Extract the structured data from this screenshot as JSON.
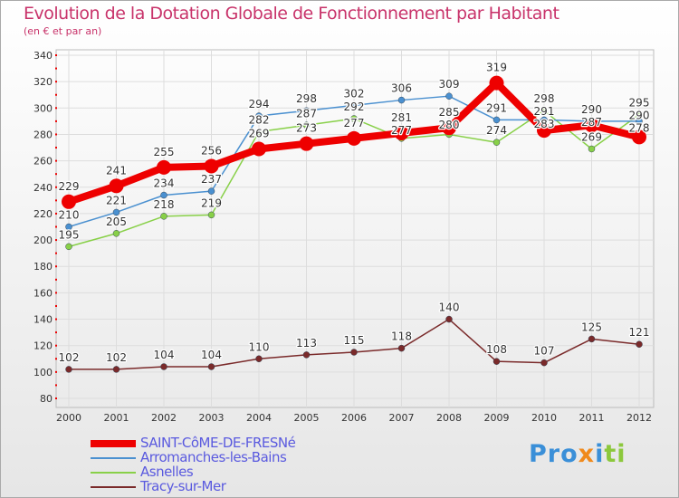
{
  "chart_data": {
    "type": "line",
    "title": "Evolution de la Dotation Globale de Fonctionnement par Habitant",
    "subtitle": "(en € et par an)",
    "x": [
      "2000",
      "2001",
      "2002",
      "2003",
      "2004",
      "2005",
      "2006",
      "2007",
      "2008",
      "2009",
      "2010",
      "2011",
      "2012"
    ],
    "yticks": [
      80,
      100,
      120,
      140,
      160,
      180,
      200,
      220,
      240,
      260,
      280,
      300,
      320,
      340
    ],
    "ylim": [
      80,
      340
    ],
    "grid": true,
    "legend_position": "bottom-left",
    "series": [
      {
        "name": "SAINT-CôME-DE-FRESNé",
        "color": "#ee0000",
        "values": [
          229,
          241,
          255,
          256,
          269,
          273,
          277,
          281,
          285,
          319,
          283,
          287,
          278
        ]
      },
      {
        "name": "Arromanches-les-Bains",
        "color": "#4a90d0",
        "values": [
          210,
          221,
          234,
          237,
          294,
          298,
          302,
          306,
          309,
          291,
          291,
          290,
          290
        ]
      },
      {
        "name": "Asnelles",
        "color": "#88d048",
        "values": [
          195,
          205,
          218,
          219,
          282,
          287,
          292,
          277,
          280,
          274,
          298,
          269,
          295
        ]
      },
      {
        "name": "Tracy-sur-Mer",
        "color": "#7a2a2a",
        "values": [
          102,
          102,
          104,
          104,
          110,
          113,
          115,
          118,
          140,
          108,
          107,
          125,
          121
        ]
      }
    ]
  },
  "logo_text": "Proxiti"
}
